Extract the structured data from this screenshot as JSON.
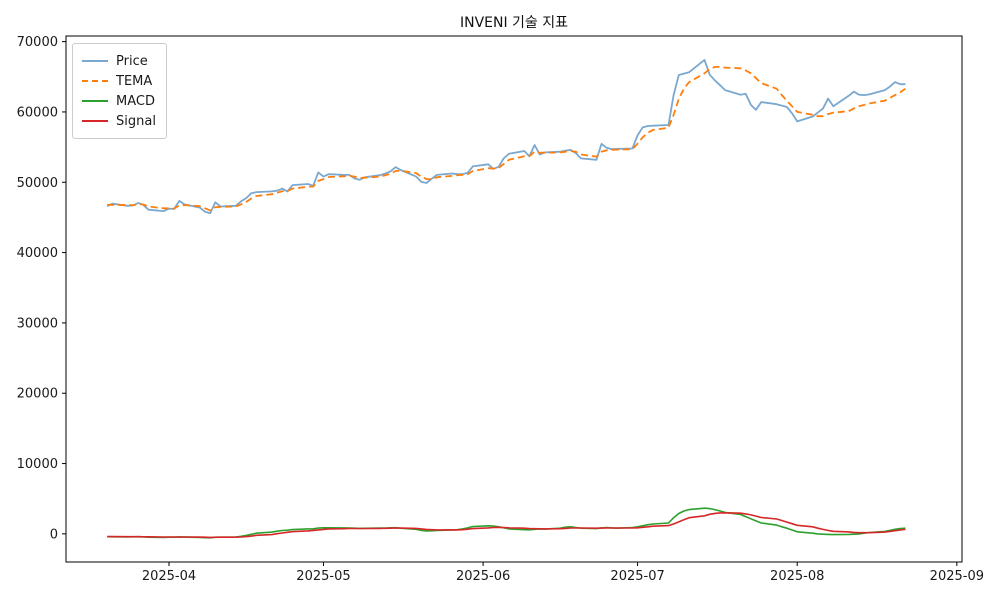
{
  "title": "INVENI 기술 지표",
  "colors": {
    "price": "#7aa8cf",
    "tema": "#ff7f0e",
    "macd": "#2ca02c",
    "signal": "#d62728",
    "axis": "#000000",
    "text": "#1a1a1a",
    "legend_border": "#cccccc",
    "background": "#ffffff"
  },
  "legend": {
    "items": [
      {
        "label": "Price",
        "color": "#7aa8cf",
        "dash": false
      },
      {
        "label": "TEMA",
        "color": "#ff7f0e",
        "dash": true
      },
      {
        "label": "MACD",
        "color": "#2ca02c",
        "dash": false
      },
      {
        "label": "Signal",
        "color": "#d62728",
        "dash": false
      }
    ]
  },
  "axes": {
    "x_ticks": [
      {
        "label": "2025-04",
        "date": "2025-04-01"
      },
      {
        "label": "2025-05",
        "date": "2025-05-01"
      },
      {
        "label": "2025-06",
        "date": "2025-06-01"
      },
      {
        "label": "2025-07",
        "date": "2025-07-01"
      },
      {
        "label": "2025-08",
        "date": "2025-08-01"
      },
      {
        "label": "2025-09",
        "date": "2025-09-01"
      }
    ],
    "y_ticks": [
      0,
      10000,
      20000,
      30000,
      40000,
      50000,
      60000,
      70000
    ],
    "x_range": [
      "2025-03-12",
      "2025-09-02"
    ],
    "y_range": [
      -4000,
      70800
    ]
  },
  "chart_data": {
    "type": "line",
    "title": "INVENI 기술 지표",
    "xlabel": "",
    "ylabel": "",
    "ylim": [
      -4000,
      70800
    ],
    "legend_position": "upper left",
    "grid": false,
    "x": [
      "2025-03-20",
      "2025-03-21",
      "2025-03-24",
      "2025-03-25",
      "2025-03-26",
      "2025-03-27",
      "2025-03-28",
      "2025-03-31",
      "2025-04-01",
      "2025-04-02",
      "2025-04-03",
      "2025-04-04",
      "2025-04-07",
      "2025-04-08",
      "2025-04-09",
      "2025-04-10",
      "2025-04-11",
      "2025-04-14",
      "2025-04-15",
      "2025-04-16",
      "2025-04-17",
      "2025-04-18",
      "2025-04-21",
      "2025-04-22",
      "2025-04-23",
      "2025-04-24",
      "2025-04-25",
      "2025-04-28",
      "2025-04-29",
      "2025-04-30",
      "2025-05-01",
      "2025-05-02",
      "2025-05-05",
      "2025-05-06",
      "2025-05-07",
      "2025-05-08",
      "2025-05-09",
      "2025-05-12",
      "2025-05-13",
      "2025-05-14",
      "2025-05-15",
      "2025-05-16",
      "2025-05-19",
      "2025-05-20",
      "2025-05-21",
      "2025-05-22",
      "2025-05-23",
      "2025-05-26",
      "2025-05-27",
      "2025-05-28",
      "2025-05-29",
      "2025-05-30",
      "2025-06-02",
      "2025-06-03",
      "2025-06-04",
      "2025-06-05",
      "2025-06-06",
      "2025-06-09",
      "2025-06-10",
      "2025-06-11",
      "2025-06-12",
      "2025-06-13",
      "2025-06-16",
      "2025-06-17",
      "2025-06-18",
      "2025-06-19",
      "2025-06-20",
      "2025-06-23",
      "2025-06-24",
      "2025-06-25",
      "2025-06-26",
      "2025-06-27",
      "2025-06-30",
      "2025-07-01",
      "2025-07-02",
      "2025-07-03",
      "2025-07-04",
      "2025-07-07",
      "2025-07-08",
      "2025-07-09",
      "2025-07-10",
      "2025-07-11",
      "2025-07-14",
      "2025-07-15",
      "2025-07-16",
      "2025-07-17",
      "2025-07-18",
      "2025-07-21",
      "2025-07-22",
      "2025-07-23",
      "2025-07-24",
      "2025-07-25",
      "2025-07-28",
      "2025-07-29",
      "2025-07-30",
      "2025-07-31",
      "2025-08-01",
      "2025-08-04",
      "2025-08-05",
      "2025-08-06",
      "2025-08-07",
      "2025-08-08",
      "2025-08-11",
      "2025-08-12",
      "2025-08-13",
      "2025-08-14",
      "2025-08-15",
      "2025-08-18",
      "2025-08-19",
      "2025-08-20",
      "2025-08-21",
      "2025-08-22"
    ],
    "series": [
      {
        "name": "Price",
        "color": "#7aa8cf",
        "style": "solid",
        "width": 1.8,
        "values": [
          46600,
          46950,
          46650,
          46700,
          47050,
          46800,
          46100,
          45900,
          46250,
          46200,
          47350,
          46850,
          46400,
          45800,
          45600,
          47150,
          46550,
          46650,
          47300,
          47750,
          48450,
          48600,
          48700,
          48800,
          49100,
          48700,
          49600,
          49750,
          49500,
          51400,
          50800,
          51150,
          51050,
          51050,
          50550,
          50350,
          50700,
          51000,
          51250,
          51550,
          52150,
          51750,
          50800,
          50050,
          49900,
          50500,
          51050,
          51250,
          51150,
          51150,
          51350,
          52250,
          52550,
          51900,
          52200,
          53400,
          54050,
          54450,
          53700,
          55300,
          53950,
          54250,
          54350,
          54500,
          54600,
          54150,
          53400,
          53200,
          55450,
          54900,
          54700,
          54750,
          54800,
          56700,
          57800,
          58000,
          58050,
          58150,
          62400,
          65250,
          65450,
          65650,
          67400,
          65300,
          64500,
          63800,
          63100,
          62450,
          62600,
          61000,
          60300,
          61400,
          61100,
          60900,
          60700,
          59800,
          58650,
          59350,
          59900,
          60500,
          61900,
          60800,
          62300,
          62900,
          62450,
          62400,
          62500,
          63100,
          63600,
          64250,
          63950,
          63950
        ]
      },
      {
        "name": "TEMA",
        "color": "#ff7f0e",
        "style": "dashed",
        "width": 1.8,
        "values": [
          46800,
          46800,
          46750,
          46750,
          46850,
          46850,
          46550,
          46300,
          46300,
          46250,
          46700,
          46750,
          46600,
          46300,
          46000,
          46450,
          46500,
          46550,
          46850,
          47200,
          47700,
          48050,
          48300,
          48500,
          48750,
          48750,
          49100,
          49350,
          49400,
          50200,
          50450,
          50750,
          50850,
          50950,
          50800,
          50600,
          50650,
          50800,
          51000,
          51200,
          51600,
          51650,
          51300,
          50800,
          50450,
          50450,
          50700,
          50900,
          51000,
          51050,
          51150,
          51600,
          52000,
          51950,
          52050,
          52600,
          53200,
          53700,
          53700,
          54350,
          54200,
          54200,
          54250,
          54350,
          54450,
          54350,
          53950,
          53650,
          54350,
          54550,
          54600,
          54650,
          54700,
          55500,
          56400,
          57050,
          57450,
          57750,
          59600,
          61850,
          63300,
          64250,
          65500,
          66100,
          66400,
          66400,
          66300,
          66200,
          65900,
          65500,
          64800,
          64100,
          63300,
          62400,
          61600,
          60800,
          60000,
          59600,
          59400,
          59400,
          59700,
          59900,
          60100,
          60500,
          60800,
          61000,
          61200,
          61600,
          62000,
          62400,
          62800,
          63300
        ]
      },
      {
        "name": "MACD",
        "color": "#2ca02c",
        "style": "solid",
        "width": 1.6,
        "values": [
          -400,
          -420,
          -430,
          -420,
          -400,
          -420,
          -470,
          -500,
          -480,
          -470,
          -430,
          -460,
          -500,
          -540,
          -560,
          -480,
          -470,
          -450,
          -350,
          -220,
          -60,
          100,
          250,
          380,
          480,
          520,
          620,
          700,
          720,
          820,
          860,
          870,
          850,
          830,
          800,
          780,
          790,
          820,
          840,
          860,
          880,
          800,
          650,
          500,
          420,
          430,
          500,
          560,
          600,
          700,
          850,
          1050,
          1150,
          1100,
          1000,
          850,
          700,
          600,
          580,
          650,
          700,
          680,
          800,
          950,
          1000,
          900,
          800,
          750,
          850,
          900,
          850,
          800,
          900,
          1000,
          1150,
          1300,
          1400,
          1550,
          2300,
          2900,
          3250,
          3450,
          3650,
          3600,
          3450,
          3250,
          3050,
          2750,
          2450,
          2150,
          1850,
          1550,
          1250,
          1000,
          800,
          550,
          300,
          100,
          0,
          -50,
          -80,
          -100,
          -80,
          -50,
          0,
          100,
          200,
          350,
          500,
          650,
          750,
          800
        ]
      },
      {
        "name": "Signal",
        "color": "#d62728",
        "style": "solid",
        "width": 1.6,
        "values": [
          -380,
          -390,
          -400,
          -400,
          -400,
          -410,
          -420,
          -440,
          -450,
          -450,
          -450,
          -450,
          -460,
          -480,
          -500,
          -490,
          -480,
          -470,
          -440,
          -390,
          -310,
          -210,
          -100,
          20,
          130,
          230,
          330,
          420,
          490,
          570,
          640,
          700,
          740,
          760,
          770,
          770,
          770,
          780,
          790,
          810,
          830,
          820,
          780,
          710,
          640,
          590,
          570,
          560,
          570,
          600,
          660,
          750,
          850,
          910,
          930,
          910,
          860,
          800,
          750,
          730,
          720,
          710,
          730,
          780,
          830,
          840,
          830,
          810,
          820,
          840,
          840,
          830,
          840,
          870,
          930,
          1010,
          1090,
          1180,
          1400,
          1700,
          2010,
          2300,
          2570,
          2780,
          2910,
          2980,
          2990,
          2940,
          2840,
          2700,
          2530,
          2330,
          2120,
          1900,
          1680,
          1450,
          1220,
          1000,
          800,
          630,
          490,
          370,
          280,
          210,
          170,
          160,
          170,
          250,
          350,
          450,
          550,
          650
        ]
      }
    ]
  }
}
